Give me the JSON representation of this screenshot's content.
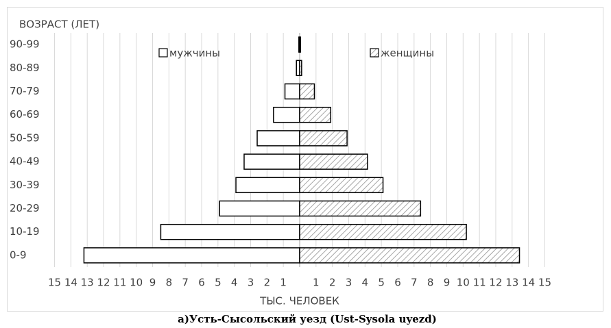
{
  "chart_data": {
    "type": "pyramid",
    "y_axis_title": "ВОЗРАСТ (ЛЕТ)",
    "x_axis_title": "ТЫС. ЧЕЛОВЕК",
    "caption": "а)Усть-Сысольский уезд (Ust-Sysola uyezd)",
    "categories": [
      "0-9",
      "10-19",
      "20-29",
      "30-39",
      "40-49",
      "50-59",
      "60-69",
      "70-79",
      "80-89",
      "90-99"
    ],
    "series": [
      {
        "name": "мужчины",
        "color": "#ffffff",
        "hatch": false,
        "values": [
          -13.2,
          -8.5,
          -4.9,
          -3.9,
          -3.4,
          -2.6,
          -1.6,
          -0.9,
          -0.2,
          -0.05
        ]
      },
      {
        "name": "женщины",
        "color": "#ffffff",
        "hatch": true,
        "values": [
          13.45,
          10.2,
          7.4,
          5.1,
          4.15,
          2.9,
          1.9,
          0.9,
          0.12,
          0.05
        ]
      }
    ],
    "xlim": [
      -15.4,
      15.4
    ],
    "xticks": [
      {
        "value": -15,
        "label": "15"
      },
      {
        "value": -14,
        "label": "14"
      },
      {
        "value": -13,
        "label": "13"
      },
      {
        "value": -12,
        "label": "12"
      },
      {
        "value": -11,
        "label": "11"
      },
      {
        "value": -10,
        "label": "10"
      },
      {
        "value": -9,
        "label": "9"
      },
      {
        "value": -8,
        "label": "8"
      },
      {
        "value": -7,
        "label": "7"
      },
      {
        "value": -6,
        "label": "6"
      },
      {
        "value": -5,
        "label": "5"
      },
      {
        "value": -4,
        "label": "4"
      },
      {
        "value": -3,
        "label": "3"
      },
      {
        "value": -2,
        "label": "2"
      },
      {
        "value": -1,
        "label": "1"
      },
      1,
      2,
      3,
      4,
      5,
      6,
      7,
      8,
      9,
      10,
      11,
      12,
      13,
      14,
      15
    ],
    "grid": true
  }
}
